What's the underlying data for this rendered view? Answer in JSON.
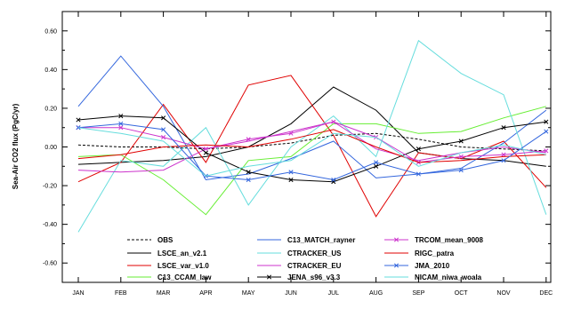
{
  "chart_data": {
    "type": "line",
    "title": "",
    "xlabel": "",
    "ylabel": "Sea-Air CO2 flux (PgC/yr)",
    "categories": [
      "JAN",
      "FEB",
      "MAR",
      "APR",
      "MAY",
      "JUN",
      "JUL",
      "AUG",
      "SEP",
      "OCT",
      "NOV",
      "DEC"
    ],
    "ylim": [
      -0.7,
      0.7
    ],
    "yticks": [
      0.6,
      0.4,
      0.2,
      0.0,
      -0.2,
      -0.4,
      -0.6
    ],
    "ytick_labels": [
      "0.60",
      "0.40",
      "0.20",
      "0.00",
      "-0.20",
      "-0.40",
      "-0.60"
    ],
    "grid": false,
    "legend_position": "bottom-left inside",
    "series": [
      {
        "name": "OBS",
        "color": "#000000",
        "dash": "3,2",
        "marker": "",
        "values": [
          0.01,
          0.0,
          0.0,
          -0.01,
          0.0,
          0.02,
          0.06,
          0.07,
          0.04,
          0.0,
          -0.01,
          -0.02
        ]
      },
      {
        "name": "LSCE_an_v2.1",
        "color": "#000000",
        "dash": "",
        "marker": "",
        "values": [
          -0.09,
          -0.08,
          -0.07,
          -0.05,
          0.0,
          0.12,
          0.31,
          0.19,
          -0.03,
          -0.06,
          -0.07,
          -0.1
        ]
      },
      {
        "name": "LSCE_var_v1.0",
        "color": "#e00000",
        "dash": "",
        "marker": "",
        "values": [
          -0.18,
          -0.08,
          0.22,
          -0.08,
          0.32,
          0.37,
          0.06,
          -0.36,
          -0.03,
          -0.06,
          0.03,
          -0.21
        ]
      },
      {
        "name": "C13_CCAM_law",
        "color": "#66ee33",
        "dash": "",
        "marker": "",
        "values": [
          -0.05,
          -0.04,
          -0.17,
          -0.35,
          -0.07,
          -0.05,
          0.12,
          0.12,
          0.07,
          0.08,
          0.15,
          0.21
        ]
      },
      {
        "name": "C13_MATCH_rayner",
        "color": "#3366dd",
        "dash": "",
        "marker": "",
        "values": [
          0.21,
          0.47,
          0.21,
          -0.17,
          -0.14,
          -0.06,
          0.03,
          -0.16,
          -0.14,
          -0.11,
          0.02,
          0.19
        ]
      },
      {
        "name": "CTRACKER_US",
        "color": "#66dddd",
        "dash": "",
        "marker": "",
        "values": [
          -0.44,
          -0.07,
          -0.1,
          0.1,
          -0.3,
          0.0,
          0.16,
          -0.05,
          0.55,
          0.38,
          0.27,
          -0.35
        ]
      },
      {
        "name": "CTRACKER_EU",
        "color": "#cc33cc",
        "dash": "",
        "marker": "",
        "values": [
          -0.12,
          -0.13,
          -0.12,
          -0.01,
          0.03,
          0.08,
          0.13,
          -0.01,
          -0.07,
          -0.03,
          0.0,
          -0.03
        ]
      },
      {
        "name": "JENA_s96_v3.3",
        "color": "#000000",
        "dash": "",
        "marker": "x",
        "values": [
          0.14,
          0.16,
          0.15,
          -0.03,
          -0.13,
          -0.17,
          -0.18,
          -0.1,
          -0.01,
          0.03,
          0.1,
          0.13
        ]
      },
      {
        "name": "TRCOM_mean_9008",
        "color": "#cc33cc",
        "dash": "",
        "marker": "x",
        "values": [
          0.1,
          0.1,
          0.05,
          -0.01,
          0.04,
          0.07,
          0.13,
          0.05,
          -0.08,
          -0.05,
          -0.04,
          -0.02
        ]
      },
      {
        "name": "RIGC_patra",
        "color": "#e00000",
        "dash": "",
        "marker": "",
        "values": [
          -0.06,
          -0.04,
          0.0,
          0.01,
          0.0,
          0.04,
          0.09,
          0.0,
          -0.08,
          -0.07,
          -0.05,
          -0.04
        ]
      },
      {
        "name": "JMA_2010",
        "color": "#3366dd",
        "dash": "",
        "marker": "x",
        "values": [
          0.1,
          0.12,
          0.09,
          -0.15,
          -0.17,
          -0.13,
          -0.17,
          -0.08,
          -0.14,
          -0.12,
          -0.07,
          0.08
        ]
      },
      {
        "name": "NICAM_niwa_woala",
        "color": "#66dddd",
        "dash": "",
        "marker": "",
        "values": [
          0.1,
          0.07,
          0.03,
          -0.15,
          -0.1,
          -0.07,
          0.07,
          0.05,
          -0.1,
          -0.03,
          0.01,
          -0.04
        ]
      }
    ]
  }
}
